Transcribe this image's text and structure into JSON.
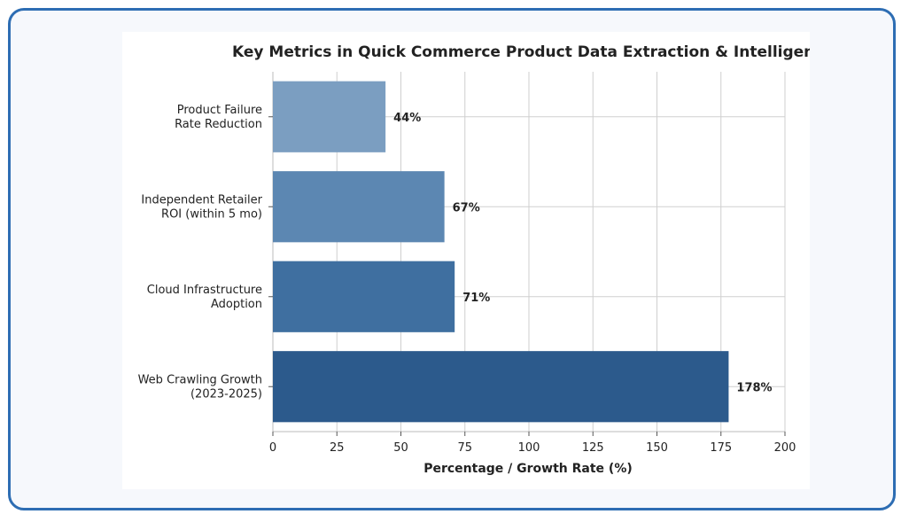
{
  "chart_data": {
    "type": "bar",
    "orientation": "horizontal",
    "title": "Key Metrics in Quick Commerce Product Data Extraction & Intelligence",
    "xlabel": "Percentage / Growth Rate (%)",
    "ylabel": "",
    "xlim": [
      0,
      200
    ],
    "x_ticks": [
      0,
      25,
      50,
      75,
      100,
      125,
      150,
      175,
      200
    ],
    "grid": true,
    "categories": [
      [
        "Product Failure",
        "Rate Reduction"
      ],
      [
        "Independent Retailer",
        "ROI (within 5 mo)"
      ],
      [
        "Cloud Infrastructure",
        "Adoption"
      ],
      [
        "Web Crawling Growth",
        "(2023-2025)"
      ]
    ],
    "values": [
      44,
      67,
      71,
      178
    ],
    "value_labels": [
      "44%",
      "67%",
      "71%",
      "178%"
    ],
    "colors": [
      "#7b9ec1",
      "#5c87b2",
      "#3f6fa0",
      "#2c5a8c"
    ]
  }
}
